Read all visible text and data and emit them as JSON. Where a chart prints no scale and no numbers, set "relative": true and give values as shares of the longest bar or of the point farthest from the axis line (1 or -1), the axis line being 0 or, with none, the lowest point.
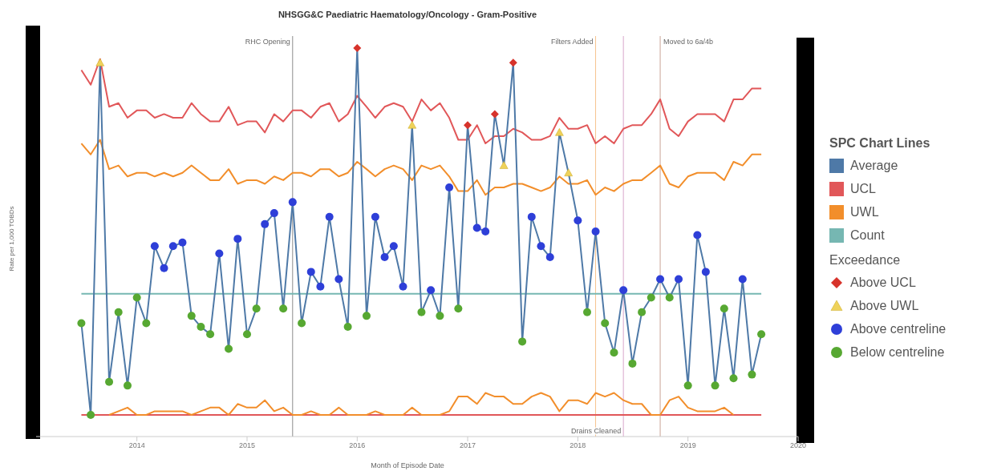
{
  "chart_data": {
    "type": "line",
    "title": "NHSGG&C Paediatric Haematology/Oncology - Gram-Positive",
    "xlabel": "Month of Episode Date",
    "ylabel": "Rate per 1,000 TOBDs",
    "legend_title": "SPC Chart Lines",
    "annotations": [
      "Exceedance"
    ],
    "relative": true,
    "legend": "right",
    "xlim": [
      "2013-02",
      "2020-01"
    ],
    "xticks": [
      "2014",
      "2015",
      "2016",
      "2017",
      "2018",
      "2019",
      "2020"
    ],
    "x": [
      "2013-07",
      "2013-08",
      "2013-09",
      "2013-10",
      "2013-11",
      "2013-12",
      "2014-01",
      "2014-02",
      "2014-03",
      "2014-04",
      "2014-05",
      "2014-06",
      "2014-07",
      "2014-08",
      "2014-09",
      "2014-10",
      "2014-11",
      "2014-12",
      "2015-01",
      "2015-02",
      "2015-03",
      "2015-04",
      "2015-05",
      "2015-06",
      "2015-07",
      "2015-08",
      "2015-09",
      "2015-10",
      "2015-11",
      "2015-12",
      "2016-01",
      "2016-02",
      "2016-03",
      "2016-04",
      "2016-05",
      "2016-06",
      "2016-07",
      "2016-08",
      "2016-09",
      "2016-10",
      "2016-11",
      "2016-12",
      "2017-01",
      "2017-02",
      "2017-03",
      "2017-04",
      "2017-05",
      "2017-06",
      "2017-07",
      "2017-08",
      "2017-09",
      "2017-10",
      "2017-11",
      "2017-12",
      "2018-01",
      "2018-02",
      "2018-03",
      "2018-04",
      "2018-05",
      "2018-06",
      "2018-07",
      "2018-08",
      "2018-09",
      "2018-10",
      "2018-11",
      "2018-12",
      "2019-01",
      "2019-02",
      "2019-03",
      "2019-04",
      "2019-05",
      "2019-06",
      "2019-07",
      "2019-08",
      "2019-09"
    ],
    "ref_lines": [
      {
        "axis": "x",
        "value": "2015-06",
        "label": "RHC Opening",
        "color": "#8c8c8c"
      },
      {
        "axis": "x",
        "value": "2018-03",
        "label": "Filters Added",
        "color": "#f6c48f"
      },
      {
        "axis": "x",
        "value": "2018-06",
        "label": "Drains Cleaned",
        "color": "#d9a8cc"
      },
      {
        "axis": "x",
        "value": "2018-10",
        "label": "Moved to 6a/4b",
        "color": "#c9a595"
      }
    ],
    "series": [
      {
        "name": "Average",
        "type": "line",
        "color": "#4e79a7",
        "marker": "none",
        "values": [
          0.25,
          0,
          0.96,
          0.09,
          0.28,
          0.08,
          0.32,
          0.25,
          0.46,
          0.4,
          0.46,
          0.47,
          0.27,
          0.24,
          0.22,
          0.44,
          0.18,
          0.48,
          0.22,
          0.29,
          0.52,
          0.55,
          0.29,
          0.58,
          0.25,
          0.39,
          0.35,
          0.54,
          0.37,
          0.24,
          1,
          0.27,
          0.54,
          0.43,
          0.46,
          0.35,
          0.79,
          0.28,
          0.34,
          0.27,
          0.62,
          0.29,
          0.79,
          0.51,
          0.5,
          0.82,
          0.68,
          0.96,
          0.2,
          0.54,
          0.46,
          0.43,
          0.77,
          0.66,
          0.53,
          0.28,
          0.5,
          0.25,
          0.17,
          0.34,
          0.14,
          0.28,
          0.32,
          0.37,
          0.32,
          0.37,
          0.08,
          0.49,
          0.39,
          0.08,
          0.29,
          0.1,
          0.37,
          0.11,
          0.22
        ]
      },
      {
        "name": "UCL",
        "type": "line",
        "color": "#e15759",
        "marker": "none",
        "values": [
          0.94,
          0.9,
          0.97,
          0.84,
          0.85,
          0.81,
          0.83,
          0.83,
          0.81,
          0.82,
          0.81,
          0.81,
          0.85,
          0.82,
          0.8,
          0.8,
          0.84,
          0.79,
          0.8,
          0.8,
          0.77,
          0.82,
          0.8,
          0.83,
          0.83,
          0.81,
          0.84,
          0.85,
          0.8,
          0.82,
          0.87,
          0.84,
          0.81,
          0.84,
          0.85,
          0.84,
          0.8,
          0.86,
          0.83,
          0.85,
          0.81,
          0.75,
          0.75,
          0.79,
          0.74,
          0.76,
          0.76,
          0.78,
          0.77,
          0.75,
          0.75,
          0.76,
          0.81,
          0.78,
          0.78,
          0.79,
          0.74,
          0.76,
          0.74,
          0.78,
          0.79,
          0.79,
          0.82,
          0.86,
          0.78,
          0.76,
          0.8,
          0.82,
          0.82,
          0.82,
          0.8,
          0.86,
          0.86,
          0.89,
          0.89
        ]
      },
      {
        "name": "UWL",
        "type": "line",
        "color": "#f28e2b",
        "marker": "none",
        "values": [
          0.74,
          0.71,
          0.75,
          0.67,
          0.68,
          0.65,
          0.66,
          0.66,
          0.65,
          0.66,
          0.65,
          0.66,
          0.68,
          0.66,
          0.64,
          0.64,
          0.67,
          0.63,
          0.64,
          0.64,
          0.63,
          0.65,
          0.64,
          0.66,
          0.66,
          0.65,
          0.67,
          0.67,
          0.65,
          0.66,
          0.69,
          0.67,
          0.65,
          0.67,
          0.68,
          0.67,
          0.64,
          0.68,
          0.67,
          0.68,
          0.65,
          0.61,
          0.61,
          0.64,
          0.6,
          0.62,
          0.62,
          0.63,
          0.63,
          0.62,
          0.61,
          0.62,
          0.65,
          0.63,
          0.63,
          0.64,
          0.6,
          0.62,
          0.61,
          0.63,
          0.64,
          0.64,
          0.66,
          0.68,
          0.63,
          0.62,
          0.65,
          0.66,
          0.66,
          0.66,
          0.64,
          0.69,
          0.68,
          0.71,
          0.71
        ]
      },
      {
        "type": "line",
        "color": "#f28e2b",
        "marker": "none",
        "x": [
          "2013-10",
          "2013-11",
          "2013-12",
          "2014-01",
          "2014-02",
          "2014-03",
          "2014-04",
          "2014-05",
          "2014-06",
          "2014-07",
          "2014-08",
          "2014-09",
          "2014-10",
          "2014-11",
          "2014-12",
          "2015-01",
          "2015-02",
          "2015-03",
          "2015-04",
          "2015-05",
          "2015-06",
          "2015-07",
          "2015-08",
          "2015-09",
          "2015-10",
          "2015-11",
          "2015-12",
          "2016-01",
          "2016-02",
          "2016-03",
          "2016-04",
          "2016-05",
          "2016-06",
          "2016-07",
          "2016-08",
          "2016-09",
          "2016-10",
          "2016-11",
          "2016-12",
          "2017-01",
          "2017-02",
          "2017-03",
          "2017-04",
          "2017-05",
          "2017-06",
          "2017-07",
          "2017-08",
          "2017-09",
          "2017-10",
          "2017-11",
          "2017-12",
          "2018-01",
          "2018-02",
          "2018-03",
          "2018-04",
          "2018-05",
          "2018-06",
          "2018-07",
          "2018-08",
          "2018-09",
          "2018-10",
          "2018-11",
          "2018-12",
          "2019-01",
          "2019-02",
          "2019-03",
          "2019-04",
          "2019-05",
          "2019-06"
        ],
        "values": [
          0,
          0.01,
          0.02,
          0,
          0,
          0.01,
          0.01,
          0.01,
          0.01,
          0,
          0.01,
          0.02,
          0.02,
          0,
          0.03,
          0.02,
          0.02,
          0.04,
          0.01,
          0.02,
          0,
          0,
          0.01,
          0,
          0,
          0.02,
          0,
          0,
          0,
          0.01,
          0,
          0,
          0,
          0.02,
          0,
          0,
          0,
          0.01,
          0.05,
          0.05,
          0.03,
          0.06,
          0.05,
          0.05,
          0.03,
          0.03,
          0.05,
          0.06,
          0.05,
          0.01,
          0.04,
          0.04,
          0.03,
          0.06,
          0.05,
          0.06,
          0.04,
          0.03,
          0.03,
          0,
          0,
          0.04,
          0.05,
          0.02,
          0.01,
          0.01,
          0.01,
          0.02,
          0
        ]
      },
      {
        "type": "line",
        "color": "#e15759",
        "marker": "none",
        "x": [
          "2013-07",
          "2019-09"
        ],
        "values": [
          0,
          0
        ]
      },
      {
        "name": "Count",
        "type": "line",
        "color": "#76b7b2",
        "marker": "none",
        "x": [
          "2013-07",
          "2019-09"
        ],
        "values": [
          0.33,
          0.33
        ]
      },
      {
        "name": "Above UCL",
        "type": "scatter",
        "color": "#d7332b",
        "marker": "diamond",
        "x": [
          "2016-01",
          "2017-01",
          "2017-04",
          "2017-06"
        ],
        "values": [
          1,
          0.79,
          0.82,
          0.96
        ]
      },
      {
        "name": "Above UWL",
        "type": "scatter",
        "color": "#efd25a",
        "marker": "triangle",
        "x": [
          "2013-09",
          "2016-07",
          "2017-05",
          "2017-11",
          "2017-12"
        ],
        "values": [
          0.96,
          0.79,
          0.68,
          0.77,
          0.66
        ]
      },
      {
        "name": "Above centreline",
        "type": "scatter",
        "color": "#2e3fd8",
        "marker": "circle",
        "x": [
          "2014-03",
          "2014-04",
          "2014-05",
          "2014-06",
          "2014-10",
          "2014-12",
          "2015-03",
          "2015-04",
          "2015-06",
          "2015-08",
          "2015-09",
          "2015-10",
          "2015-11",
          "2016-03",
          "2016-04",
          "2016-05",
          "2016-06",
          "2016-09",
          "2016-11",
          "2017-02",
          "2017-03",
          "2017-08",
          "2017-09",
          "2017-10",
          "2018-01",
          "2018-03",
          "2018-06",
          "2018-10",
          "2018-12",
          "2019-02",
          "2019-03",
          "2019-07"
        ],
        "values": [
          0.46,
          0.4,
          0.46,
          0.47,
          0.44,
          0.48,
          0.52,
          0.55,
          0.58,
          0.39,
          0.35,
          0.54,
          0.37,
          0.54,
          0.43,
          0.46,
          0.35,
          0.34,
          0.62,
          0.51,
          0.5,
          0.54,
          0.46,
          0.43,
          0.53,
          0.5,
          0.34,
          0.37,
          0.37,
          0.49,
          0.39,
          0.37
        ]
      },
      {
        "name": "Below centreline",
        "type": "scatter",
        "color": "#57a832",
        "marker": "circle",
        "x": [
          "2013-07",
          "2013-08",
          "2013-10",
          "2013-11",
          "2013-12",
          "2014-01",
          "2014-02",
          "2014-07",
          "2014-08",
          "2014-09",
          "2014-11",
          "2015-01",
          "2015-02",
          "2015-05",
          "2015-07",
          "2015-12",
          "2016-02",
          "2016-08",
          "2016-10",
          "2016-12",
          "2017-07",
          "2018-02",
          "2018-04",
          "2018-05",
          "2018-07",
          "2018-08",
          "2018-09",
          "2018-11",
          "2019-01",
          "2019-04",
          "2019-05",
          "2019-06",
          "2019-08",
          "2019-09"
        ],
        "values": [
          0.25,
          0,
          0.09,
          0.28,
          0.08,
          0.32,
          0.25,
          0.27,
          0.24,
          0.22,
          0.18,
          0.22,
          0.29,
          0.29,
          0.25,
          0.24,
          0.27,
          0.28,
          0.27,
          0.29,
          0.2,
          0.28,
          0.25,
          0.17,
          0.14,
          0.28,
          0.32,
          0.32,
          0.08,
          0.08,
          0.29,
          0.1,
          0.11,
          0.22
        ]
      }
    ]
  }
}
